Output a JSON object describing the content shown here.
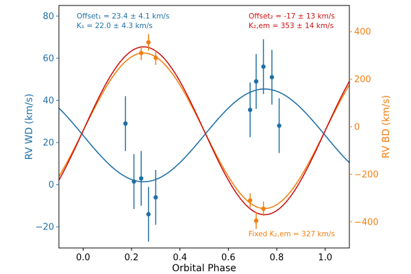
{
  "chart_data": {
    "type": "scatter",
    "xlabel": "Orbital Phase",
    "ylabel_left": "RV WD (km/s)",
    "ylabel_right": "RV BD (km/s)",
    "xlim": [
      -0.1,
      1.1
    ],
    "ylim_left": [
      -30,
      85
    ],
    "ylim_right": [
      -510,
      510
    ],
    "x_ticks": [
      {
        "v": 0.0,
        "label": "0.0"
      },
      {
        "v": 0.2,
        "label": "0.2"
      },
      {
        "v": 0.4,
        "label": "0.4"
      },
      {
        "v": 0.6,
        "label": "0.6"
      },
      {
        "v": 0.8,
        "label": "0.8"
      },
      {
        "v": 1.0,
        "label": "1.0"
      }
    ],
    "y_left_ticks": [
      {
        "v": -20,
        "label": "−20"
      },
      {
        "v": 0,
        "label": "0"
      },
      {
        "v": 20,
        "label": "20"
      },
      {
        "v": 40,
        "label": "40"
      },
      {
        "v": 60,
        "label": "60"
      },
      {
        "v": 80,
        "label": "80"
      }
    ],
    "y_right_ticks": [
      {
        "v": -400,
        "label": "−400"
      },
      {
        "v": -200,
        "label": "−200"
      },
      {
        "v": 0,
        "label": "0"
      },
      {
        "v": 200,
        "label": "200"
      },
      {
        "v": 400,
        "label": "400"
      }
    ],
    "colors": {
      "wd": "#1f6fa6",
      "bd": "#f07f10",
      "bd_em_fit": "#cc1111",
      "axes": "#000000"
    },
    "series": [
      {
        "axis": "left",
        "color_key": "wd",
        "points": [
          {
            "x": 0.175,
            "y": 29,
            "err": 13
          },
          {
            "x": 0.21,
            "y": 1.5,
            "err": 13
          },
          {
            "x": 0.24,
            "y": 3,
            "err": 13
          },
          {
            "x": 0.27,
            "y": -14,
            "err": 13
          },
          {
            "x": 0.3,
            "y": -6,
            "err": 13
          },
          {
            "x": 0.69,
            "y": 35.5,
            "err": 13
          },
          {
            "x": 0.715,
            "y": 49,
            "err": 13
          },
          {
            "x": 0.745,
            "y": 56,
            "err": 13
          },
          {
            "x": 0.78,
            "y": 51,
            "err": 13
          },
          {
            "x": 0.81,
            "y": 28,
            "err": 13
          }
        ],
        "model": {
          "offset": 23.4,
          "amplitude": -22.0
        }
      },
      {
        "axis": "right",
        "color_key": "bd",
        "points": [
          {
            "x": 0.24,
            "y": 310,
            "err": 30
          },
          {
            "x": 0.27,
            "y": 355,
            "err": 35
          },
          {
            "x": 0.3,
            "y": 290,
            "err": 30
          },
          {
            "x": 0.69,
            "y": -310,
            "err": 30
          },
          {
            "x": 0.715,
            "y": -395,
            "err": 35
          },
          {
            "x": 0.745,
            "y": -345,
            "err": 30
          }
        ],
        "model": {
          "offset": -17,
          "amplitude": 327
        }
      },
      {
        "axis": "right",
        "color_key": "bd_em_fit",
        "points": [],
        "model": {
          "offset": -17,
          "amplitude": 353
        }
      }
    ],
    "annotations": {
      "wd_offset": "Offset₁ = 23.4 ± 4.1 km/s",
      "wd_k": "K₁ = 22.0 ± 4.3 km/s",
      "bd_offset": "Offset₂ = -17 ± 13 km/s",
      "bd_k": "K₂,em = 353 ± 14 km/s",
      "bd_fixed": "Fixed K₂,em = 327 km/s"
    }
  }
}
